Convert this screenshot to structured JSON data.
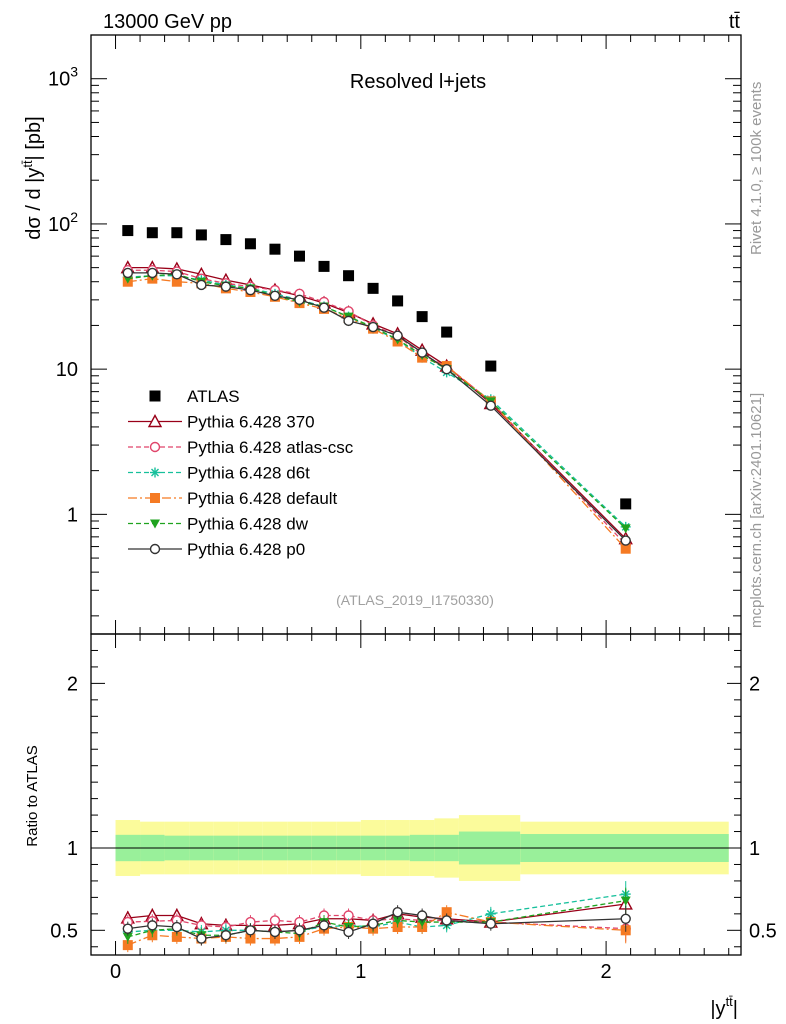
{
  "chart_data": {
    "type": "scatter",
    "header_left": "13000 GeV pp",
    "header_right": "tt̄",
    "title": "Resolved l+jets",
    "analysis_id": "(ATLAS_2019_I1750330)",
    "side_note_top": "Rivet 4.1.0, ≥ 100k events",
    "side_note_bottom": "mcplots.cern.ch [arXiv:2401.10621]",
    "ylabel_main_parts": [
      "dσ / d |y",
      "tt̄",
      "| [pb]"
    ],
    "ylabel_ratio": "Ratio to ATLAS",
    "xlabel_parts": [
      "|y",
      "tt̄",
      "|"
    ],
    "xlim": [
      -0.1,
      2.55
    ],
    "ylim_main_log": [
      0.15,
      2000
    ],
    "ylim_ratio": [
      0.35,
      2.3
    ],
    "x_ticks": [
      {
        "v": 0,
        "label": "0"
      },
      {
        "v": 1,
        "label": "1"
      },
      {
        "v": 2,
        "label": "2"
      }
    ],
    "y_ticks_main": [
      {
        "v": 1,
        "base": "1",
        "exp": ""
      },
      {
        "v": 10,
        "base": "10",
        "exp": ""
      },
      {
        "v": 100,
        "base": "10",
        "exp": "2"
      },
      {
        "v": 1000,
        "base": "10",
        "exp": "3"
      }
    ],
    "y_ticks_ratio": [
      {
        "v": 0.5,
        "label": "0.5"
      },
      {
        "v": 1,
        "label": "1"
      },
      {
        "v": 2,
        "label": "2"
      }
    ],
    "x": [
      0.05,
      0.15,
      0.25,
      0.35,
      0.45,
      0.55,
      0.65,
      0.75,
      0.85,
      0.95,
      1.05,
      1.15,
      1.25,
      1.35,
      1.53,
      2.08
    ],
    "bin_edges": [
      0,
      0.1,
      0.2,
      0.3,
      0.4,
      0.5,
      0.6,
      0.7,
      0.8,
      0.9,
      1.0,
      1.1,
      1.2,
      1.3,
      1.4,
      1.65,
      2.5
    ],
    "uncertainty_band": {
      "inner": [
        0.08,
        0.08,
        0.075,
        0.075,
        0.075,
        0.075,
        0.075,
        0.075,
        0.075,
        0.075,
        0.075,
        0.075,
        0.08,
        0.08,
        0.1,
        0.085
      ],
      "outer": [
        0.17,
        0.16,
        0.16,
        0.16,
        0.16,
        0.16,
        0.16,
        0.16,
        0.16,
        0.16,
        0.17,
        0.17,
        0.17,
        0.18,
        0.2,
        0.16
      ],
      "inner_color": "#99f09a",
      "outer_color": "#fbfb9b"
    },
    "data": {
      "name": "ATLAS",
      "values": [
        90,
        87,
        87,
        84,
        78,
        73,
        67,
        60,
        51,
        44,
        36,
        29.5,
        23,
        18,
        10.5,
        1.18
      ],
      "color": "#000000"
    },
    "series": [
      {
        "name": "Pythia 6.428 370",
        "color": "#990018",
        "dash": "",
        "marker": "triangle-open",
        "values": [
          50,
          50,
          49,
          45,
          41,
          38,
          35,
          32,
          28.5,
          24.5,
          20.5,
          17.5,
          13.5,
          10.5,
          5.8,
          0.68
        ],
        "ratio": [
          0.575,
          0.59,
          0.59,
          0.54,
          0.53,
          0.53,
          0.53,
          0.54,
          0.57,
          0.57,
          0.56,
          0.6,
          0.58,
          0.57,
          0.55,
          0.66
        ]
      },
      {
        "name": "Pythia 6.428 atlas-csc",
        "color": "#e0446a",
        "dash": "5,3",
        "marker": "circle-open",
        "values": [
          48,
          48,
          47,
          42,
          39,
          37,
          35,
          33,
          29,
          25,
          20,
          17,
          12.5,
          10.5,
          6.0,
          0.62
        ],
        "ratio": [
          0.55,
          0.555,
          0.56,
          0.53,
          0.52,
          0.55,
          0.56,
          0.55,
          0.59,
          0.59,
          0.56,
          0.57,
          0.56,
          0.56,
          0.55,
          0.51
        ]
      },
      {
        "name": "Pythia 6.428 d6t",
        "color": "#17c09c",
        "dash": "5,3",
        "marker": "star",
        "values": [
          43,
          44,
          44,
          41,
          38,
          36,
          33,
          30,
          27,
          23,
          19,
          16,
          12,
          9.5,
          6.2,
          0.82
        ],
        "ratio": [
          0.49,
          0.5,
          0.5,
          0.49,
          0.5,
          0.5,
          0.49,
          0.5,
          0.52,
          0.53,
          0.52,
          0.55,
          0.52,
          0.53,
          0.6,
          0.72
        ]
      },
      {
        "name": "Pythia 6.428 default",
        "color": "#f57a23",
        "dash": "9,3,2,3",
        "marker": "square",
        "values": [
          40,
          42,
          40,
          39,
          36,
          34,
          31.5,
          28.5,
          26,
          22.5,
          19,
          15.5,
          12,
          10.5,
          6.0,
          0.58
        ],
        "ratio": [
          0.41,
          0.47,
          0.46,
          0.45,
          0.46,
          0.45,
          0.45,
          0.46,
          0.51,
          0.52,
          0.51,
          0.52,
          0.52,
          0.61,
          0.55,
          0.5
        ]
      },
      {
        "name": "Pythia 6.428 dw",
        "color": "#1fa31f",
        "dash": "5,3",
        "marker": "triangle-down",
        "values": [
          42,
          44,
          45,
          40,
          37.5,
          36,
          32,
          29,
          27,
          23,
          19.5,
          16,
          12.5,
          10,
          6.0,
          0.8
        ],
        "ratio": [
          0.46,
          0.5,
          0.51,
          0.47,
          0.47,
          0.5,
          0.49,
          0.48,
          0.55,
          0.52,
          0.53,
          0.56,
          0.55,
          0.55,
          0.55,
          0.68
        ]
      },
      {
        "name": "Pythia 6.428 p0",
        "color": "#333333",
        "dash": "",
        "marker": "circle-open",
        "values": [
          46,
          46,
          45,
          38,
          37,
          35,
          32,
          30,
          26.5,
          21.5,
          19.5,
          17,
          13,
          10,
          5.6,
          0.66
        ],
        "ratio": [
          0.51,
          0.53,
          0.52,
          0.45,
          0.47,
          0.5,
          0.49,
          0.5,
          0.53,
          0.49,
          0.54,
          0.61,
          0.59,
          0.56,
          0.54,
          0.57
        ]
      }
    ]
  }
}
